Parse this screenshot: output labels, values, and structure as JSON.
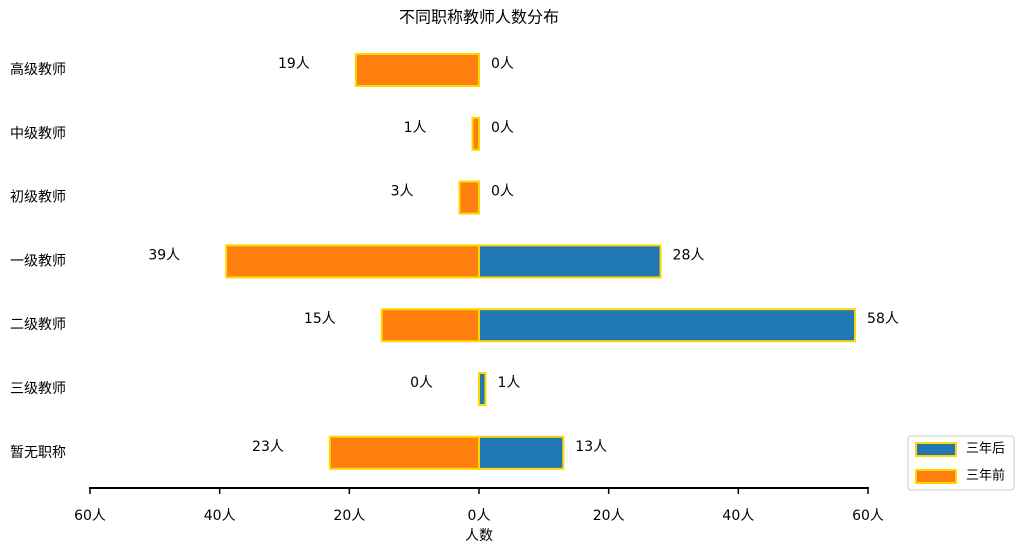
{
  "chart_data": {
    "type": "butterfly-bar",
    "title": "不同职称教师人数分布",
    "x_label": "人数",
    "categories": [
      "高级教师",
      "中级教师",
      "初级教师",
      "一级教师",
      "二级教师",
      "三级教师",
      "暂无职称"
    ],
    "series": [
      {
        "name": "三年后",
        "color": "#1f77b4",
        "values": [
          0,
          0,
          0,
          28,
          58,
          1,
          13
        ],
        "value_labels": [
          "0人",
          "0人",
          "0人",
          "28人",
          "58人",
          "1人",
          "13人"
        ]
      },
      {
        "name": "三年前",
        "color": "#ff7f0e",
        "values": [
          19,
          1,
          3,
          39,
          15,
          0,
          23
        ],
        "value_labels": [
          "19人",
          "1人",
          "3人",
          "39人",
          "15人",
          "0人",
          "23人"
        ]
      }
    ],
    "edge_color": "#ffd700",
    "xlim": [
      -60,
      60
    ],
    "xticks": [
      {
        "value": -60,
        "label": "60人"
      },
      {
        "value": -40,
        "label": "40人"
      },
      {
        "value": -20,
        "label": "20人"
      },
      {
        "value": 0,
        "label": "0人"
      },
      {
        "value": 20,
        "label": "20人"
      },
      {
        "value": 40,
        "label": "40人"
      },
      {
        "value": 60,
        "label": "60人"
      }
    ],
    "legend": "lower right"
  }
}
